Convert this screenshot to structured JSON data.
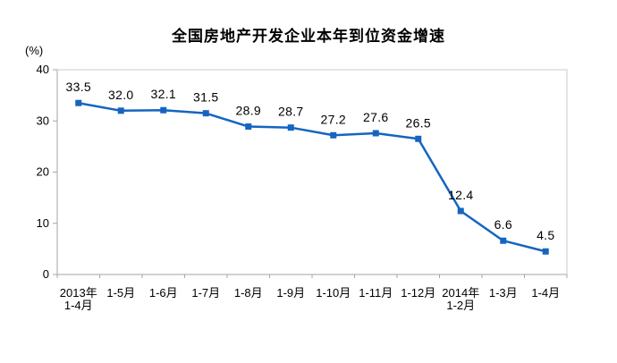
{
  "chart_data": {
    "type": "line",
    "title": "全国房地产开发企业本年到位资金增速",
    "unit_label": "(%)",
    "xlabel": "",
    "ylabel": "(%)",
    "categories": [
      "2013年\n1-4月",
      "1-5月",
      "1-6月",
      "1-7月",
      "1-8月",
      "1-9月",
      "1-10月",
      "1-11月",
      "1-12月",
      "2014年\n1-2月",
      "1-3月",
      "1-4月"
    ],
    "values": [
      33.5,
      32.0,
      32.1,
      31.5,
      28.9,
      28.7,
      27.2,
      27.6,
      26.5,
      12.4,
      6.6,
      4.5
    ],
    "data_labels": [
      "33.5",
      "32.0",
      "32.1",
      "31.5",
      "28.9",
      "28.7",
      "27.2",
      "27.6",
      "26.5",
      "12.4",
      "6.6",
      "4.5"
    ],
    "y_ticks": [
      0,
      10,
      20,
      30,
      40
    ],
    "y_tick_labels": [
      "0",
      "10",
      "20",
      "30",
      "40"
    ],
    "ylim": [
      0,
      40
    ],
    "grid": false,
    "legend": false,
    "marker": "square",
    "colors": {
      "line": "#1565C0",
      "marker": "#1565C0",
      "axis": "#A6A6A6",
      "plot_border": "#C9C9C9",
      "text": "#000000",
      "background": "#FFFFFF"
    }
  }
}
